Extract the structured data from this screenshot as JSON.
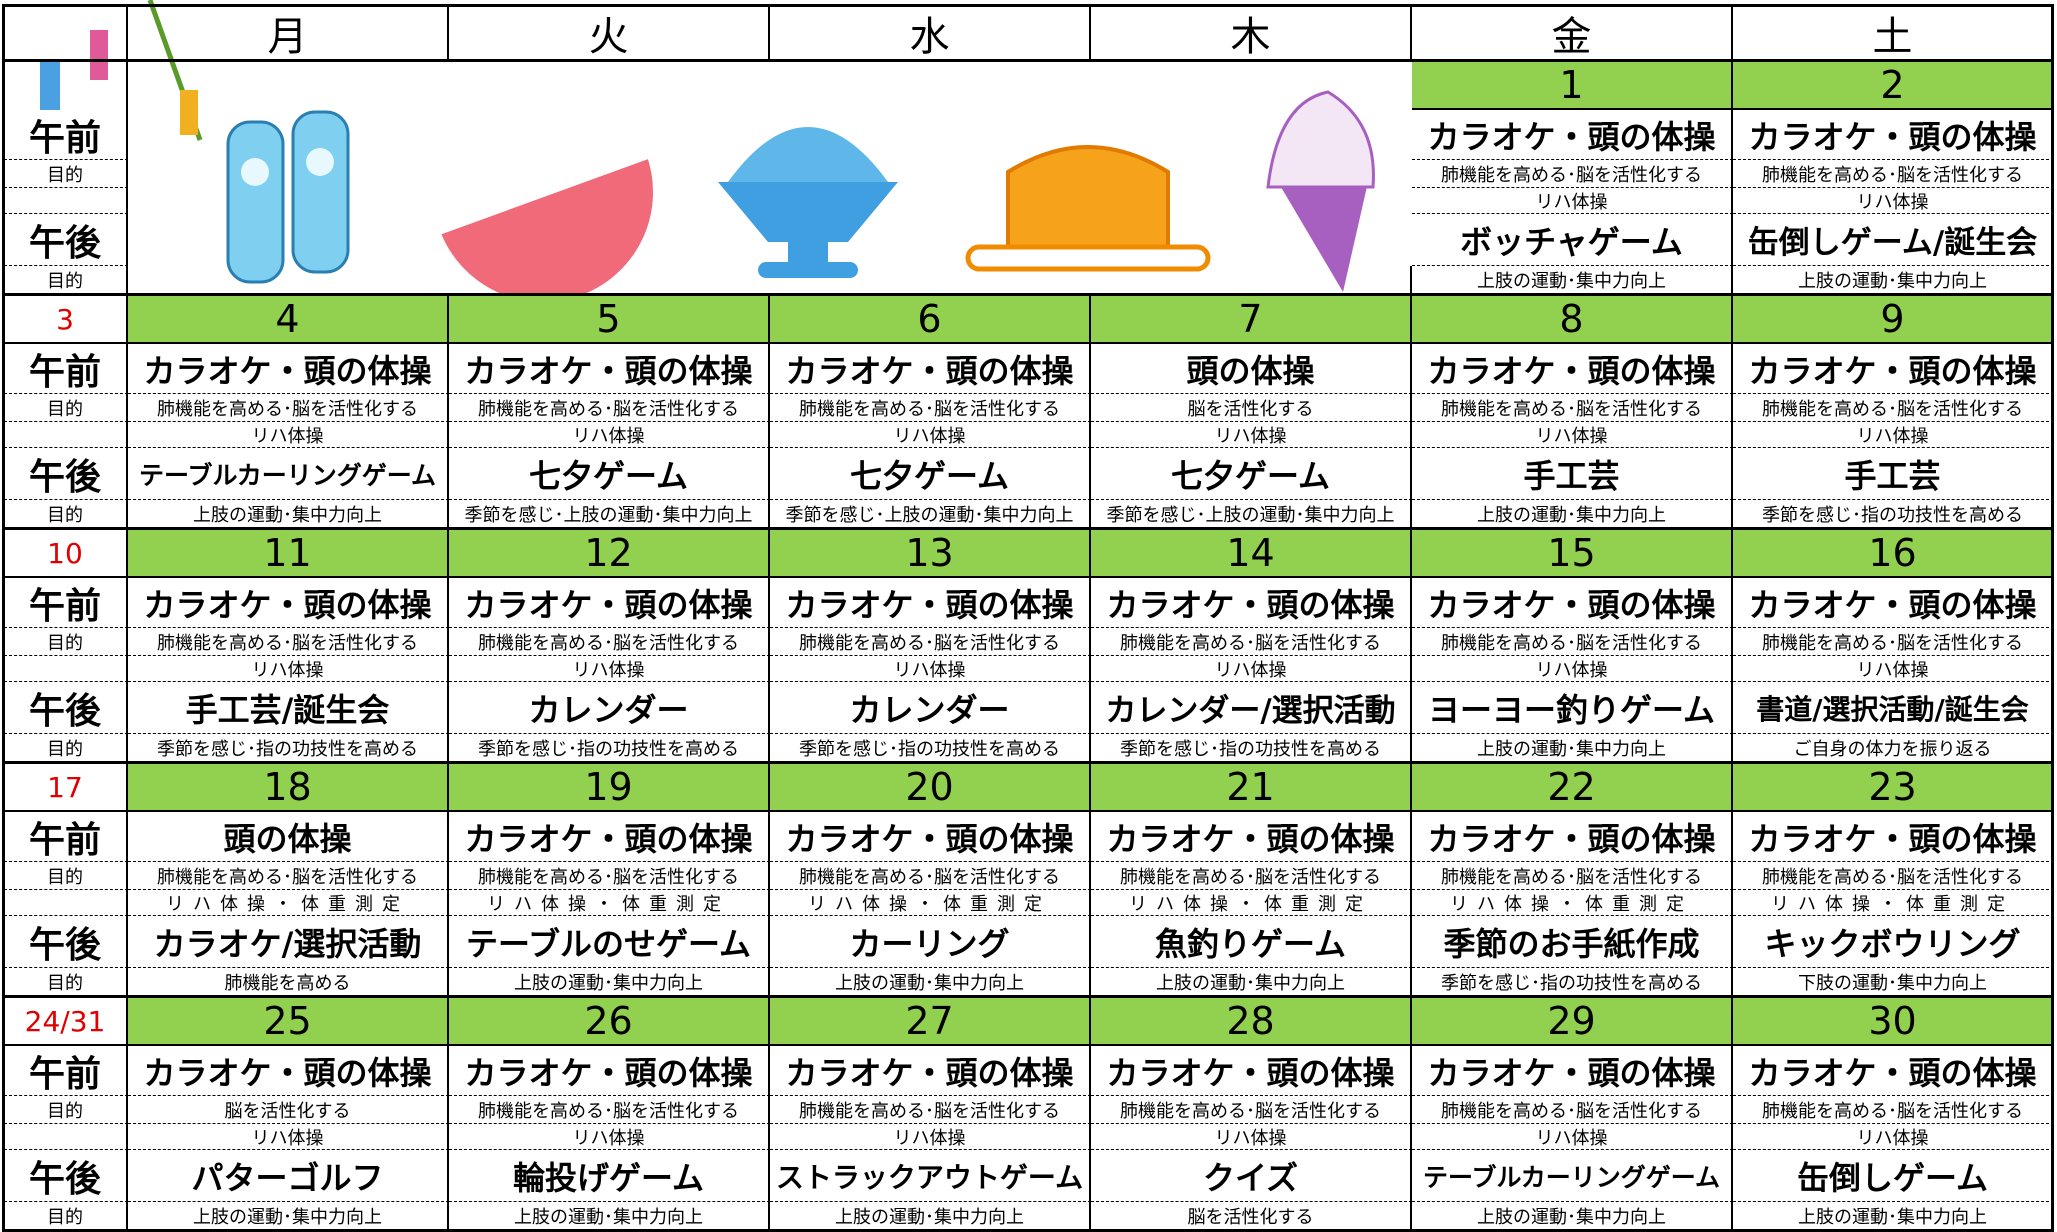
{
  "header": {
    "weekdays": [
      "月",
      "火",
      "水",
      "木",
      "金",
      "土"
    ]
  },
  "labels": {
    "am": "午前",
    "pm": "午後",
    "purpose": "目的"
  },
  "weeks": [
    {
      "sunday": null,
      "days": [
        null,
        null,
        null,
        null,
        {
          "date": "1",
          "am": "カラオケ・頭の体操",
          "am_purpose": "肺機能を高める･脳を活性化する",
          "rehab": "リハ体操",
          "pm": "ボッチャゲーム",
          "pm_purpose": "上肢の運動･集中力向上"
        },
        {
          "date": "2",
          "am": "カラオケ・頭の体操",
          "am_purpose": "肺機能を高める･脳を活性化する",
          "rehab": "リハ体操",
          "pm": "缶倒しゲーム/誕生会",
          "pm_purpose": "上肢の運動･集中力向上"
        }
      ]
    },
    {
      "sunday": "3",
      "days": [
        {
          "date": "4",
          "am": "カラオケ・頭の体操",
          "am_purpose": "肺機能を高める･脳を活性化する",
          "rehab": "リハ体操",
          "pm": "テーブルカーリングゲーム",
          "pm_purpose": "上肢の運動･集中力向上"
        },
        {
          "date": "5",
          "am": "カラオケ・頭の体操",
          "am_purpose": "肺機能を高める･脳を活性化する",
          "rehab": "リハ体操",
          "pm": "七夕ゲーム",
          "pm_purpose": "季節を感じ･上肢の運動･集中力向上"
        },
        {
          "date": "6",
          "am": "カラオケ・頭の体操",
          "am_purpose": "肺機能を高める･脳を活性化する",
          "rehab": "リハ体操",
          "pm": "七夕ゲーム",
          "pm_purpose": "季節を感じ･上肢の運動･集中力向上"
        },
        {
          "date": "7",
          "am": "頭の体操",
          "am_purpose": "脳を活性化する",
          "rehab": "リハ体操",
          "pm": "七夕ゲーム",
          "pm_purpose": "季節を感じ･上肢の運動･集中力向上"
        },
        {
          "date": "8",
          "am": "カラオケ・頭の体操",
          "am_purpose": "肺機能を高める･脳を活性化する",
          "rehab": "リハ体操",
          "pm": "手工芸",
          "pm_purpose": "上肢の運動･集中力向上"
        },
        {
          "date": "9",
          "am": "カラオケ・頭の体操",
          "am_purpose": "肺機能を高める･脳を活性化する",
          "rehab": "リハ体操",
          "pm": "手工芸",
          "pm_purpose": "季節を感じ･指の功技性を高める"
        }
      ]
    },
    {
      "sunday": "10",
      "days": [
        {
          "date": "11",
          "am": "カラオケ・頭の体操",
          "am_purpose": "肺機能を高める･脳を活性化する",
          "rehab": "リハ体操",
          "pm": "手工芸/誕生会",
          "pm_purpose": "季節を感じ･指の功技性を高める"
        },
        {
          "date": "12",
          "am": "カラオケ・頭の体操",
          "am_purpose": "肺機能を高める･脳を活性化する",
          "rehab": "リハ体操",
          "pm": "カレンダー",
          "pm_purpose": "季節を感じ･指の功技性を高める"
        },
        {
          "date": "13",
          "am": "カラオケ・頭の体操",
          "am_purpose": "肺機能を高める･脳を活性化する",
          "rehab": "リハ体操",
          "pm": "カレンダー",
          "pm_purpose": "季節を感じ･指の功技性を高める"
        },
        {
          "date": "14",
          "am": "カラオケ・頭の体操",
          "am_purpose": "肺機能を高める･脳を活性化する",
          "rehab": "リハ体操",
          "pm": "カレンダー/選択活動",
          "pm_purpose": "季節を感じ･指の功技性を高める"
        },
        {
          "date": "15",
          "am": "カラオケ・頭の体操",
          "am_purpose": "肺機能を高める･脳を活性化する",
          "rehab": "リハ体操",
          "pm": "ヨーヨー釣りゲーム",
          "pm_purpose": "上肢の運動･集中力向上"
        },
        {
          "date": "16",
          "am": "カラオケ・頭の体操",
          "am_purpose": "肺機能を高める･脳を活性化する",
          "rehab": "リハ体操",
          "pm": "書道/選択活動/誕生会",
          "pm_purpose": "ご自身の体力を振り返る"
        }
      ]
    },
    {
      "sunday": "17",
      "days": [
        {
          "date": "18",
          "am": "頭の体操",
          "am_purpose": "肺機能を高める･脳を活性化する",
          "rehab": "リハ体操・体重測定",
          "pm": "カラオケ/選択活動",
          "pm_purpose": "肺機能を高める"
        },
        {
          "date": "19",
          "am": "カラオケ・頭の体操",
          "am_purpose": "肺機能を高める･脳を活性化する",
          "rehab": "リハ体操・体重測定",
          "pm": "テーブルのせゲーム",
          "pm_purpose": "上肢の運動･集中力向上"
        },
        {
          "date": "20",
          "am": "カラオケ・頭の体操",
          "am_purpose": "肺機能を高める･脳を活性化する",
          "rehab": "リハ体操・体重測定",
          "pm": "カーリング",
          "pm_purpose": "上肢の運動･集中力向上"
        },
        {
          "date": "21",
          "am": "カラオケ・頭の体操",
          "am_purpose": "肺機能を高める･脳を活性化する",
          "rehab": "リハ体操・体重測定",
          "pm": "魚釣りゲーム",
          "pm_purpose": "上肢の運動･集中力向上"
        },
        {
          "date": "22",
          "am": "カラオケ・頭の体操",
          "am_purpose": "肺機能を高める･脳を活性化する",
          "rehab": "リハ体操・体重測定",
          "pm": "季節のお手紙作成",
          "pm_purpose": "季節を感じ･指の功技性を高める"
        },
        {
          "date": "23",
          "am": "カラオケ・頭の体操",
          "am_purpose": "肺機能を高める･脳を活性化する",
          "rehab": "リハ体操・体重測定",
          "pm": "キックボウリング",
          "pm_purpose": "下肢の運動･集中力向上"
        }
      ]
    },
    {
      "sunday": "24/31",
      "days": [
        {
          "date": "25",
          "am": "カラオケ・頭の体操",
          "am_purpose": "脳を活性化する",
          "rehab": "リハ体操",
          "pm": "パターゴルフ",
          "pm_purpose": "上肢の運動･集中力向上"
        },
        {
          "date": "26",
          "am": "カラオケ・頭の体操",
          "am_purpose": "肺機能を高める･脳を活性化する",
          "rehab": "リハ体操",
          "pm": "輪投げゲーム",
          "pm_purpose": "上肢の運動･集中力向上"
        },
        {
          "date": "27",
          "am": "カラオケ・頭の体操",
          "am_purpose": "肺機能を高める･脳を活性化する",
          "rehab": "リハ体操",
          "pm": "ストラックアウトゲーム",
          "pm_purpose": "上肢の運動･集中力向上"
        },
        {
          "date": "28",
          "am": "カラオケ・頭の体操",
          "am_purpose": "肺機能を高める･脳を活性化する",
          "rehab": "リハ体操",
          "pm": "クイズ",
          "pm_purpose": "脳を活性化する"
        },
        {
          "date": "29",
          "am": "カラオケ・頭の体操",
          "am_purpose": "肺機能を高める･脳を活性化する",
          "rehab": "リハ体操",
          "pm": "テーブルカーリングゲーム",
          "pm_purpose": "上肢の運動･集中力向上"
        },
        {
          "date": "30",
          "am": "カラオケ・頭の体操",
          "am_purpose": "肺機能を高める･脳を活性化する",
          "rehab": "リハ体操",
          "pm": "缶倒しゲーム",
          "pm_purpose": "上肢の運動･集中力向上"
        }
      ]
    }
  ]
}
